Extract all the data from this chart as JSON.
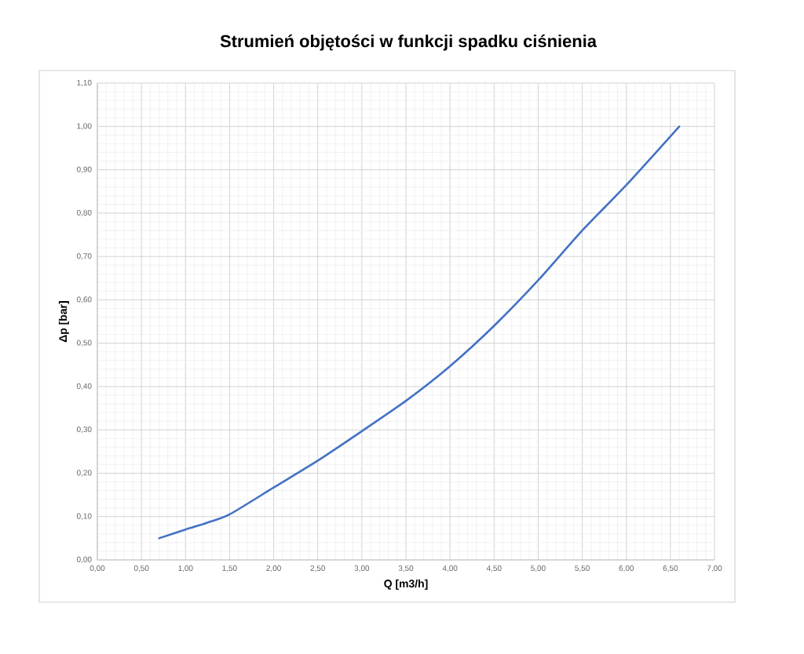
{
  "chart_data": {
    "type": "line",
    "title": "Strumień objętości w funkcji spadku ciśnienia",
    "xlabel": "Q [m3/h]",
    "ylabel": "Δp [bar]",
    "x": [
      0.7,
      1.0,
      1.25,
      1.5,
      2.0,
      2.5,
      3.0,
      3.5,
      4.0,
      4.5,
      5.0,
      5.5,
      6.0,
      6.6
    ],
    "values": [
      0.05,
      0.07,
      0.086,
      0.105,
      0.167,
      0.229,
      0.297,
      0.367,
      0.447,
      0.54,
      0.645,
      0.76,
      0.865,
      1.0
    ],
    "color": "#4472c4",
    "marker": "none",
    "line_style": "solid",
    "grid": true,
    "xlim": [
      0,
      7
    ],
    "ylim": [
      0,
      1.1
    ],
    "xticks": [
      {
        "value": 0,
        "label": "0,00"
      },
      {
        "value": 0.5,
        "label": "0,50"
      },
      {
        "value": 1,
        "label": "1,00"
      },
      {
        "value": 1.5,
        "label": "1,50"
      },
      {
        "value": 2,
        "label": "2,00"
      },
      {
        "value": 2.5,
        "label": "2,50"
      },
      {
        "value": 3,
        "label": "3,00"
      },
      {
        "value": 3.5,
        "label": "3,50"
      },
      {
        "value": 4,
        "label": "4,00"
      },
      {
        "value": 4.5,
        "label": "4,50"
      },
      {
        "value": 5,
        "label": "5,00"
      },
      {
        "value": 5.5,
        "label": "5,50"
      },
      {
        "value": 6,
        "label": "6,00"
      },
      {
        "value": 6.5,
        "label": "6,50"
      },
      {
        "value": 7,
        "label": "7,00"
      }
    ],
    "yticks": [
      {
        "value": 0,
        "label": "0,00"
      },
      {
        "value": 0.1,
        "label": "0,10"
      },
      {
        "value": 0.2,
        "label": "0,20"
      },
      {
        "value": 0.3,
        "label": "0,30"
      },
      {
        "value": 0.4,
        "label": "0,40"
      },
      {
        "value": 0.5,
        "label": "0,50"
      },
      {
        "value": 0.6,
        "label": "0,60"
      },
      {
        "value": 0.7,
        "label": "0,70"
      },
      {
        "value": 0.8,
        "label": "0,80"
      },
      {
        "value": 0.9,
        "label": "0,90"
      },
      {
        "value": 1.0,
        "label": "1,00"
      },
      {
        "value": 1.1,
        "label": "1,10"
      }
    ]
  }
}
